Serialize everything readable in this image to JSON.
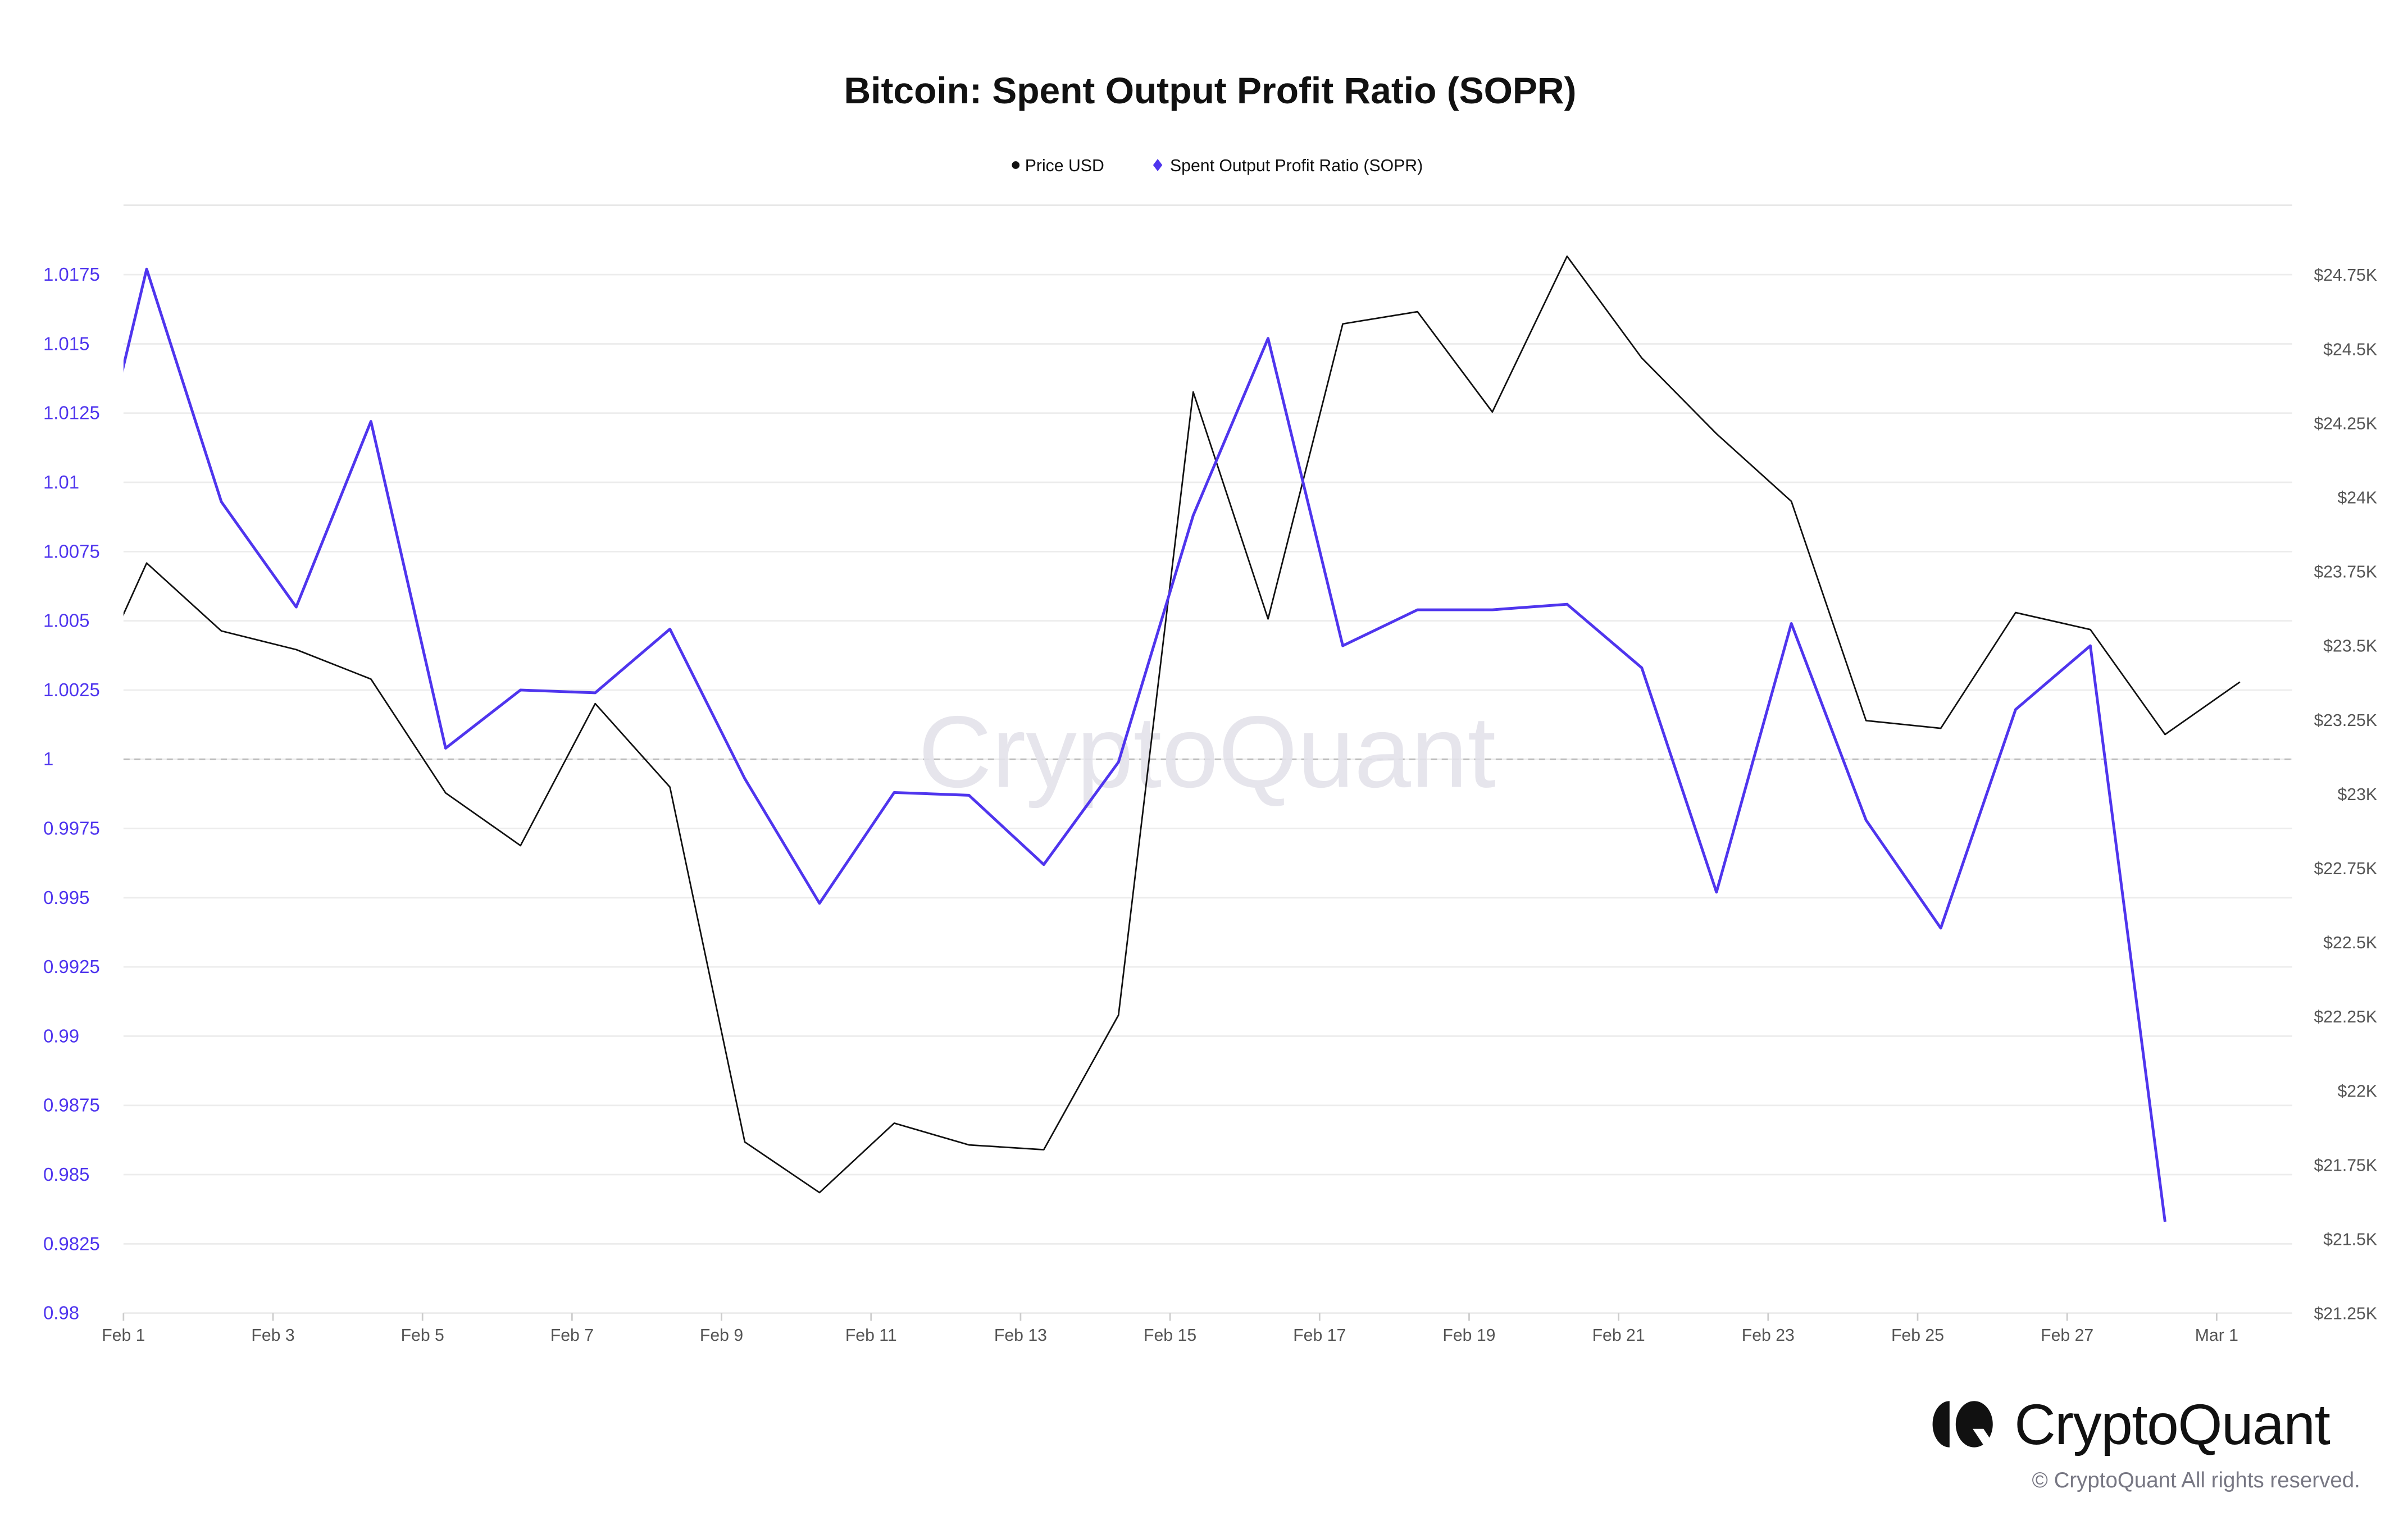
{
  "chart_data": {
    "type": "line",
    "title": "Bitcoin: Spent Output Profit Ratio (SOPR)",
    "legend": [
      {
        "name": "Price USD",
        "marker": "circle",
        "color": "#111111"
      },
      {
        "name": "Spent Output Profit Ratio (SOPR)",
        "marker": "diamond",
        "color": "#4f35ee"
      }
    ],
    "legend_placement": "top-center",
    "x_ticks": [
      "Feb 1",
      "Feb 3",
      "Feb 5",
      "Feb 7",
      "Feb 9",
      "Feb 11",
      "Feb 13",
      "Feb 15",
      "Feb 17",
      "Feb 19",
      "Feb 21",
      "Feb 23",
      "Feb 25",
      "Feb 27",
      "Mar 1"
    ],
    "x_range": [
      "Feb 1",
      "Mar 30 (approx, right edge ~Mar 1 + 1)"
    ],
    "dates": [
      "Jan 31",
      "Feb 1",
      "Feb 2",
      "Feb 3",
      "Feb 4",
      "Feb 5",
      "Feb 6",
      "Feb 7",
      "Feb 8",
      "Feb 9",
      "Feb 10",
      "Feb 11",
      "Feb 12",
      "Feb 13",
      "Feb 14",
      "Feb 15",
      "Feb 16",
      "Feb 17",
      "Feb 18",
      "Feb 19",
      "Feb 20",
      "Feb 21",
      "Feb 22",
      "Feb 23",
      "Feb 24",
      "Feb 25",
      "Feb 26",
      "Feb 27",
      "Feb 28",
      "Mar 1"
    ],
    "series": [
      {
        "name": "Price USD",
        "axis": "right",
        "color": "#111111",
        "values": [
          23221,
          23778,
          23549,
          23486,
          23387,
          23003,
          22826,
          23304,
          23023,
          21827,
          21656,
          21890,
          21817,
          21801,
          22254,
          24355,
          23590,
          24584,
          24625,
          24287,
          24812,
          24469,
          24214,
          23986,
          23247,
          23221,
          23611,
          23554,
          23200,
          23377
        ]
      },
      {
        "name": "Spent Output Profit Ratio (SOPR)",
        "axis": "left",
        "color": "#4f35ee",
        "values": [
          1.0064,
          1.0177,
          1.0093,
          1.0055,
          1.0122,
          1.0004,
          1.0025,
          1.0024,
          1.0047,
          0.9993,
          0.9948,
          0.9988,
          0.9987,
          0.9962,
          0.9999,
          1.0088,
          1.0152,
          1.0041,
          1.0054,
          1.0054,
          1.0056,
          1.0033,
          0.9952,
          1.0049,
          0.9978,
          0.9939,
          1.0018,
          1.0041,
          0.9833,
          null
        ]
      }
    ],
    "y_left": {
      "ylim": [
        0.98,
        1.02
      ],
      "ticks": [
        "0.98",
        "0.9825",
        "0.985",
        "0.9875",
        "0.99",
        "0.9925",
        "0.995",
        "0.9975",
        "1",
        "1.0025",
        "1.005",
        "1.0075",
        "1.01",
        "1.0125",
        "1.015",
        "1.0175"
      ],
      "reference_line": 1,
      "color": "#4f35ee"
    },
    "y_right": {
      "ylim": [
        21250,
        25000
      ],
      "ticks": [
        "$21.25K",
        "$21.5K",
        "$21.75K",
        "$22K",
        "$22.25K",
        "$22.5K",
        "$22.75K",
        "$23K",
        "$23.25K",
        "$23.5K",
        "$23.75K",
        "$24K",
        "$24.25K",
        "$24.5K",
        "$24.75K"
      ]
    },
    "grid": true
  },
  "watermark": "CryptoQuant",
  "footer": {
    "brand": "CryptoQuant",
    "copyright": "© CryptoQuant All rights reserved."
  }
}
